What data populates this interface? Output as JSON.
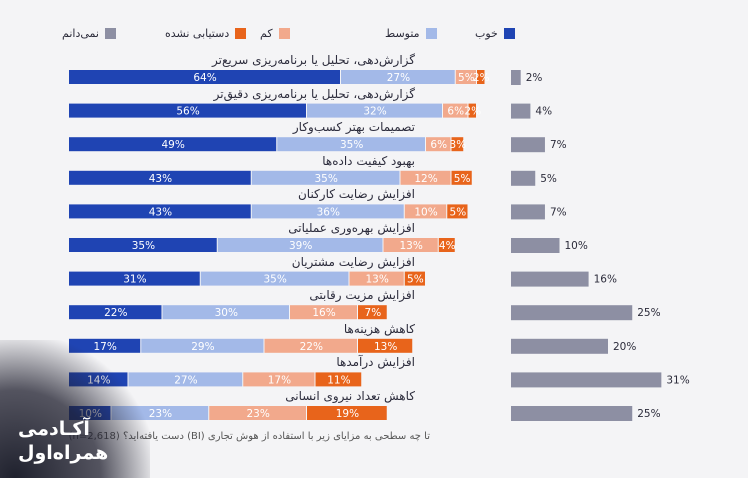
{
  "chart_data": {
    "type": "bar",
    "stacked": true,
    "orientation": "horizontal",
    "categories": [
      "گزارش‌دهی، تحلیل یا برنامه‌ریزی سریع‌تر",
      "گزارش‌دهی، تحلیل یا برنامه‌ریزی دقیق‌تر",
      "تصمیمات بهتر کسب‌وکار",
      "بهبود کیفیت داده‌ها",
      "افزایش رضایت کارکنان",
      "افزایش بهره‌وری عملیاتی",
      "افزایش رضایت مشتریان",
      "افزایش مزیت رقابتی",
      "کاهش هزینه‌ها",
      "افزایش درآمدها",
      "کاهش تعداد نیروی انسانی"
    ],
    "series": [
      {
        "name": "خوب",
        "color": "#1f44b3",
        "values": [
          64,
          56,
          49,
          43,
          43,
          35,
          31,
          22,
          17,
          14,
          10
        ]
      },
      {
        "name": "متوسط",
        "color": "#a3b9e8",
        "values": [
          27,
          32,
          35,
          35,
          36,
          39,
          35,
          30,
          29,
          27,
          23
        ]
      },
      {
        "name": "کم",
        "color": "#f2a98c",
        "values": [
          5,
          6,
          6,
          12,
          10,
          13,
          13,
          16,
          22,
          17,
          23
        ]
      },
      {
        "name": "دستیابی نشده",
        "color": "#e8641b",
        "values": [
          2,
          2,
          3,
          5,
          5,
          4,
          5,
          7,
          13,
          11,
          19
        ]
      },
      {
        "name": "نمی‌دانم",
        "color": "#8d8fa3",
        "values": [
          2,
          4,
          7,
          5,
          7,
          10,
          16,
          25,
          20,
          31,
          25
        ]
      }
    ],
    "legend": {
      "placement": "top"
    },
    "grid": false,
    "footnote": "تا چه سطحی به مزایای زیر با استفاده از هوش تجاری (BI) دست یافته‌اید؟ (n=2,618)"
  },
  "logo": {
    "line1": "آکـادمی",
    "line2": "همراه‌اول"
  }
}
